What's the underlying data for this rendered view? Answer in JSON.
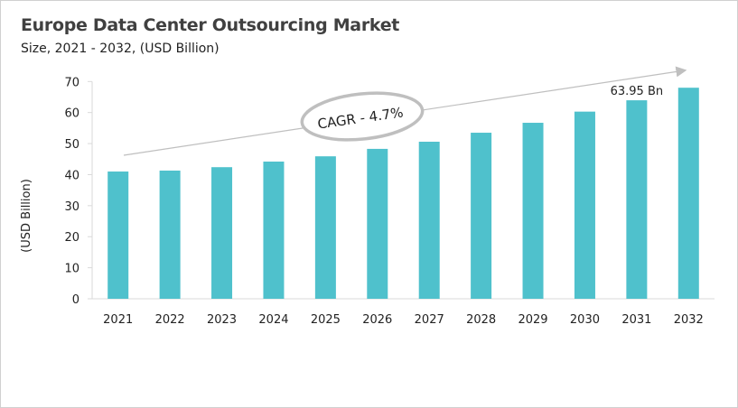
{
  "chart_data": {
    "type": "bar",
    "title": "Europe Data Center Outsourcing Market",
    "subtitle": "Size, 2021 - 2032, (USD Billion)",
    "xlabel": "",
    "ylabel": "(USD Billion)",
    "categories": [
      "2021",
      "2022",
      "2023",
      "2024",
      "2025",
      "2026",
      "2027",
      "2028",
      "2029",
      "2030",
      "2031",
      "2032"
    ],
    "values": [
      41.0,
      41.3,
      42.4,
      44.2,
      45.9,
      48.3,
      50.6,
      53.5,
      56.7,
      60.3,
      63.95,
      68.0
    ],
    "ylim": [
      0,
      70
    ],
    "yticks": [
      0,
      10,
      20,
      30,
      40,
      50,
      60,
      70
    ],
    "grid": false,
    "bar_color": "#4fc1cc",
    "annotations": {
      "cagr": "CAGR - 4.7%",
      "value_label": "63.95 Bn",
      "value_label_category": "2031"
    }
  }
}
